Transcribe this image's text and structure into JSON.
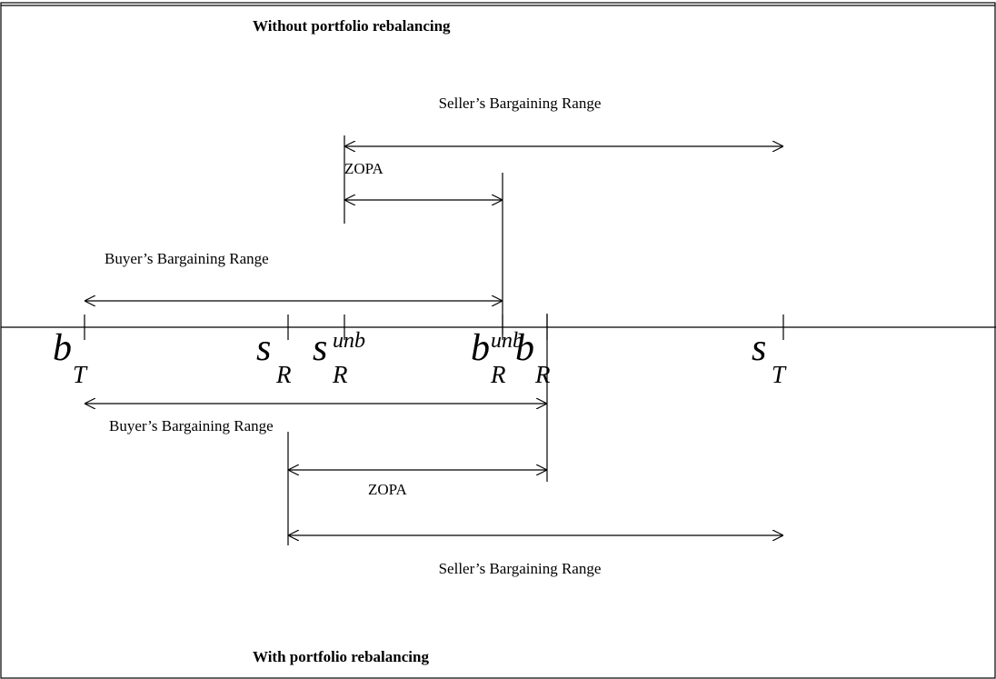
{
  "top": {
    "title": "Without portfolio rebalancing",
    "seller_range": "Seller’s Bargaining Range",
    "zopa": "ZOPA",
    "buyer_range": "Buyer’s Bargaining Range"
  },
  "bottom": {
    "title": "With portfolio rebalancing",
    "seller_range": "Seller’s Bargaining Range",
    "zopa": "ZOPA",
    "buyer_range": "Buyer’s Bargaining Range"
  },
  "points": [
    {
      "base": "b",
      "sub": "T"
    },
    {
      "base": "s",
      "sub": "R"
    },
    {
      "base": "s",
      "sub": "R",
      "sup": "unb"
    },
    {
      "base": "b",
      "sub": "R",
      "sup": "unb"
    },
    {
      "base": "b",
      "sub": "R"
    },
    {
      "base": "s",
      "sub": "T"
    }
  ]
}
